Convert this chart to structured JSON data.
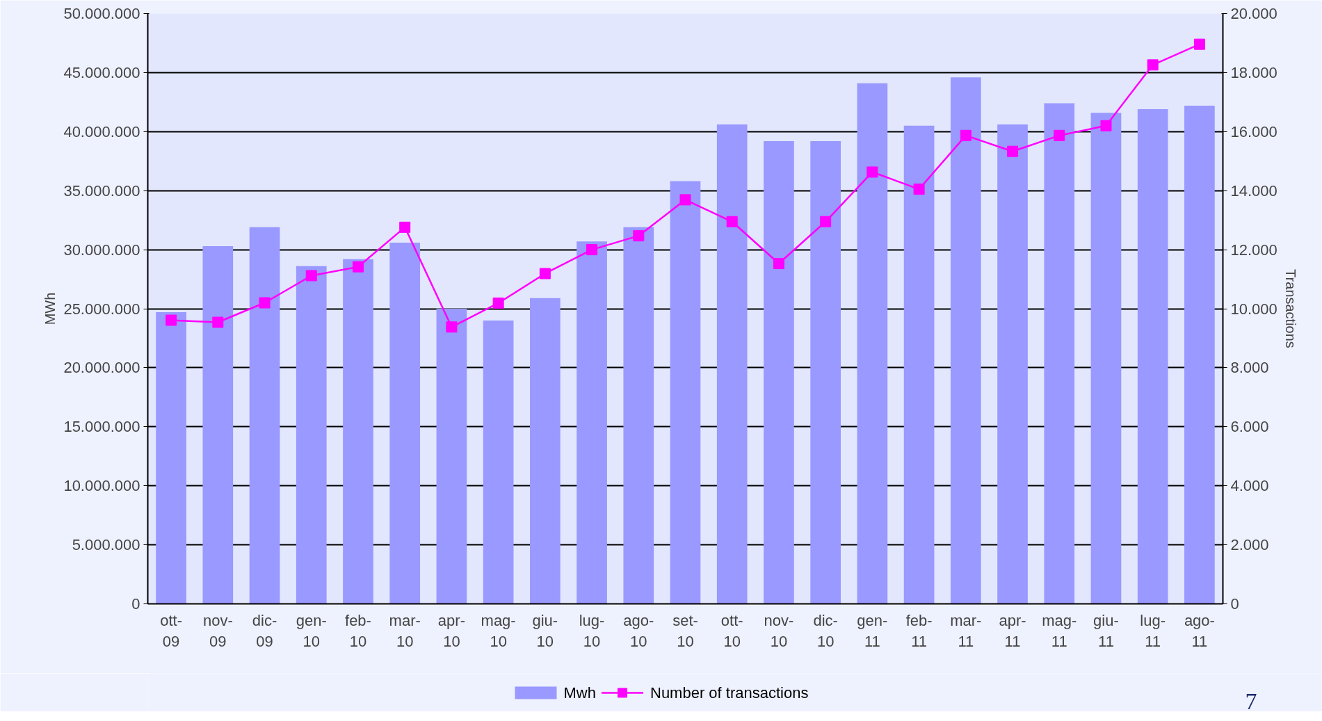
{
  "chart_data": {
    "type": "bar",
    "categories": [
      "ott-09",
      "nov-09",
      "dic-09",
      "gen-10",
      "feb-10",
      "mar-10",
      "apr-10",
      "mag-10",
      "giu-10",
      "lug-10",
      "ago-10",
      "set-10",
      "ott-10",
      "nov-10",
      "dic-10",
      "gen-11",
      "feb-11",
      "mar-11",
      "apr-11",
      "mag-11",
      "giu-11",
      "lug-11",
      "ago-11"
    ],
    "series": [
      {
        "name": "Mwh",
        "color": "#9999ff",
        "values": [
          24700000,
          30300000,
          31900000,
          28600000,
          29200000,
          30600000,
          25000000,
          24000000,
          25900000,
          30700000,
          31900000,
          35800000,
          40600000,
          39200000,
          39200000,
          44100000,
          40500000,
          44600000,
          40600000,
          42400000,
          41600000,
          41900000,
          42200000
        ]
      },
      {
        "name": "Number of transactions",
        "type": "line",
        "axis": "y2",
        "color": "#ff00ff",
        "marker": "square",
        "values": [
          9610,
          9540,
          10200,
          11120,
          11420,
          12760,
          9380,
          10190,
          11190,
          12000,
          12470,
          13690,
          12950,
          11530,
          12950,
          14630,
          14050,
          15870,
          15330,
          15870,
          16200,
          18260,
          18960
        ]
      }
    ],
    "ylabel": "MWh",
    "y2label": "Transactions",
    "ylim": [
      0,
      50000000
    ],
    "yticks": [
      0,
      {
        "value": 5000000,
        "label": "5.000.000"
      },
      {
        "value": 10000000,
        "label": "10.000.000"
      },
      {
        "value": 15000000,
        "label": "15.000.000"
      },
      {
        "value": 20000000,
        "label": "20.000.000"
      },
      {
        "value": 25000000,
        "label": "25.000.000"
      },
      {
        "value": 30000000,
        "label": "30.000.000"
      },
      {
        "value": 35000000,
        "label": "35.000.000"
      },
      {
        "value": 40000000,
        "label": "40.000.000"
      },
      {
        "value": 45000000,
        "label": "45.000.000"
      },
      {
        "value": 50000000,
        "label": "50.000.000"
      }
    ],
    "y2lim": [
      0,
      20000
    ],
    "y2ticks": [
      0,
      {
        "value": 2000,
        "label": "2.000"
      },
      {
        "value": 4000,
        "label": "4.000"
      },
      {
        "value": 6000,
        "label": "6.000"
      },
      {
        "value": 8000,
        "label": "8.000"
      },
      {
        "value": 10000,
        "label": "10.000"
      },
      {
        "value": 12000,
        "label": "12.000"
      },
      {
        "value": 14000,
        "label": "14.000"
      },
      {
        "value": 16000,
        "label": "16.000"
      },
      {
        "value": 18000,
        "label": "18.000"
      },
      {
        "value": 20000,
        "label": "20.000"
      }
    ],
    "grid": "y",
    "legend": "bottom",
    "annotations": [
      "7"
    ]
  }
}
